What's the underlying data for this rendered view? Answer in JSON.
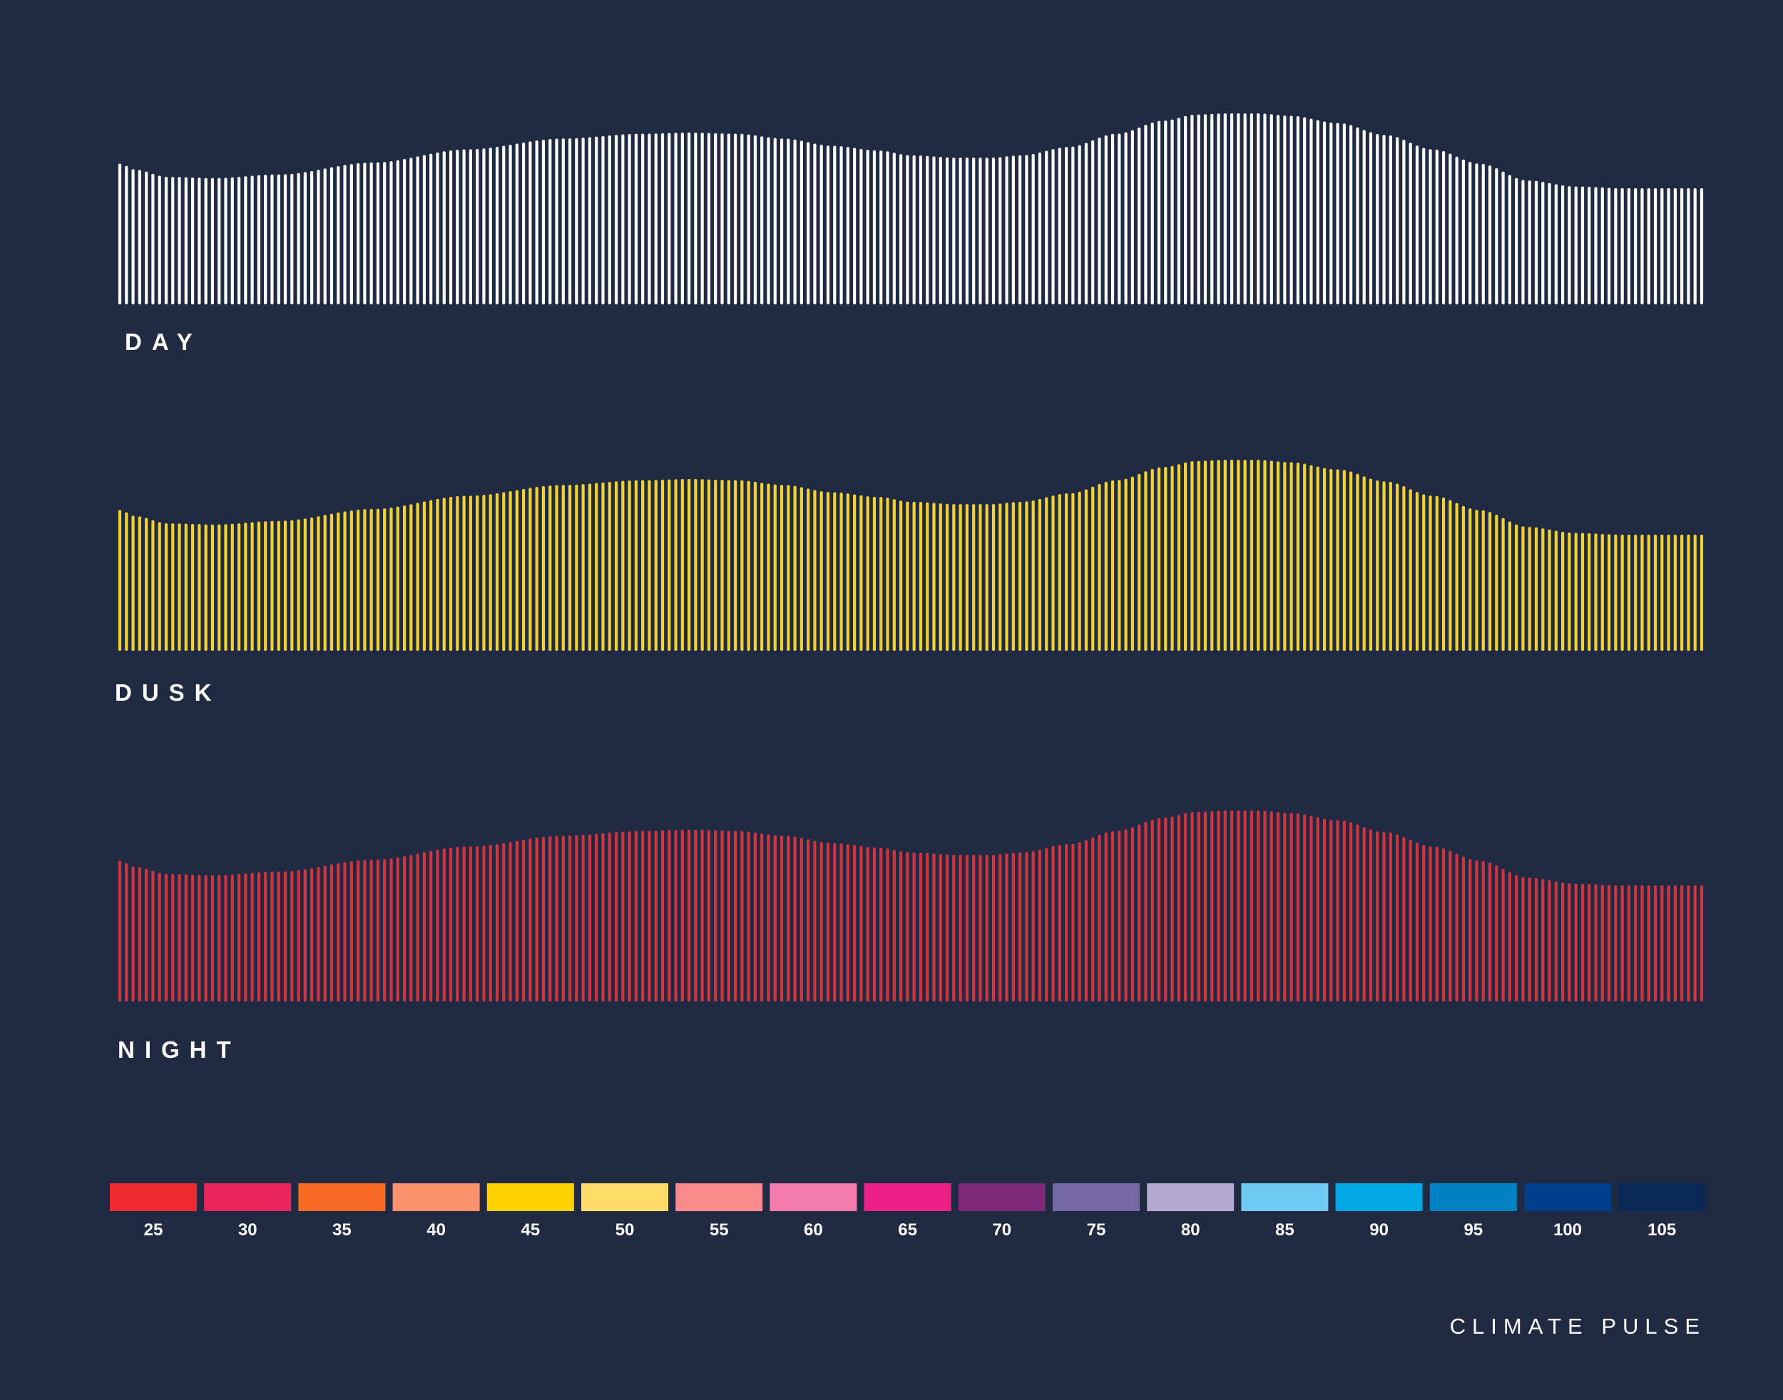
{
  "brand_text": "CLIMATE PULSE",
  "background_color": "#212a43",
  "chart_data": {
    "type": "bar",
    "bar_count": 240,
    "profile_control_points": [
      [
        0.0,
        0.58
      ],
      [
        0.01,
        0.53
      ],
      [
        0.03,
        0.47
      ],
      [
        0.06,
        0.46
      ],
      [
        0.1,
        0.49
      ],
      [
        0.16,
        0.59
      ],
      [
        0.22,
        0.7
      ],
      [
        0.28,
        0.79
      ],
      [
        0.33,
        0.83
      ],
      [
        0.36,
        0.84
      ],
      [
        0.39,
        0.83
      ],
      [
        0.42,
        0.79
      ],
      [
        0.45,
        0.73
      ],
      [
        0.48,
        0.69
      ],
      [
        0.5,
        0.65
      ],
      [
        0.53,
        0.63
      ],
      [
        0.55,
        0.63
      ],
      [
        0.57,
        0.65
      ],
      [
        0.6,
        0.72
      ],
      [
        0.63,
        0.83
      ],
      [
        0.66,
        0.94
      ],
      [
        0.68,
        0.99
      ],
      [
        0.7,
        1.0
      ],
      [
        0.72,
        1.0
      ],
      [
        0.74,
        0.98
      ],
      [
        0.77,
        0.92
      ],
      [
        0.8,
        0.82
      ],
      [
        0.83,
        0.7
      ],
      [
        0.86,
        0.58
      ],
      [
        0.89,
        0.44
      ],
      [
        0.92,
        0.39
      ],
      [
        0.95,
        0.375
      ],
      [
        1.0,
        0.375
      ]
    ],
    "series": [
      {
        "name": "DAY",
        "color": "#ffffff"
      },
      {
        "name": "DUSK",
        "color": "#f2d22e"
      },
      {
        "name": "NIGHT",
        "color": "#d0353f"
      }
    ],
    "legend": {
      "values": [
        "25",
        "30",
        "35",
        "40",
        "45",
        "50",
        "55",
        "60",
        "65",
        "70",
        "75",
        "80",
        "85",
        "90",
        "95",
        "100",
        "105"
      ],
      "colors": [
        "#ed2a2f",
        "#e9245c",
        "#f96a25",
        "#fd936d",
        "#fed300",
        "#fddc6a",
        "#fb8a8c",
        "#f47aab",
        "#ec2185",
        "#7d2a7b",
        "#7469a6",
        "#b2a9cf",
        "#6fc9f1",
        "#00a9e5",
        "#0083c4",
        "#003f8a",
        "#0b2857"
      ]
    }
  }
}
